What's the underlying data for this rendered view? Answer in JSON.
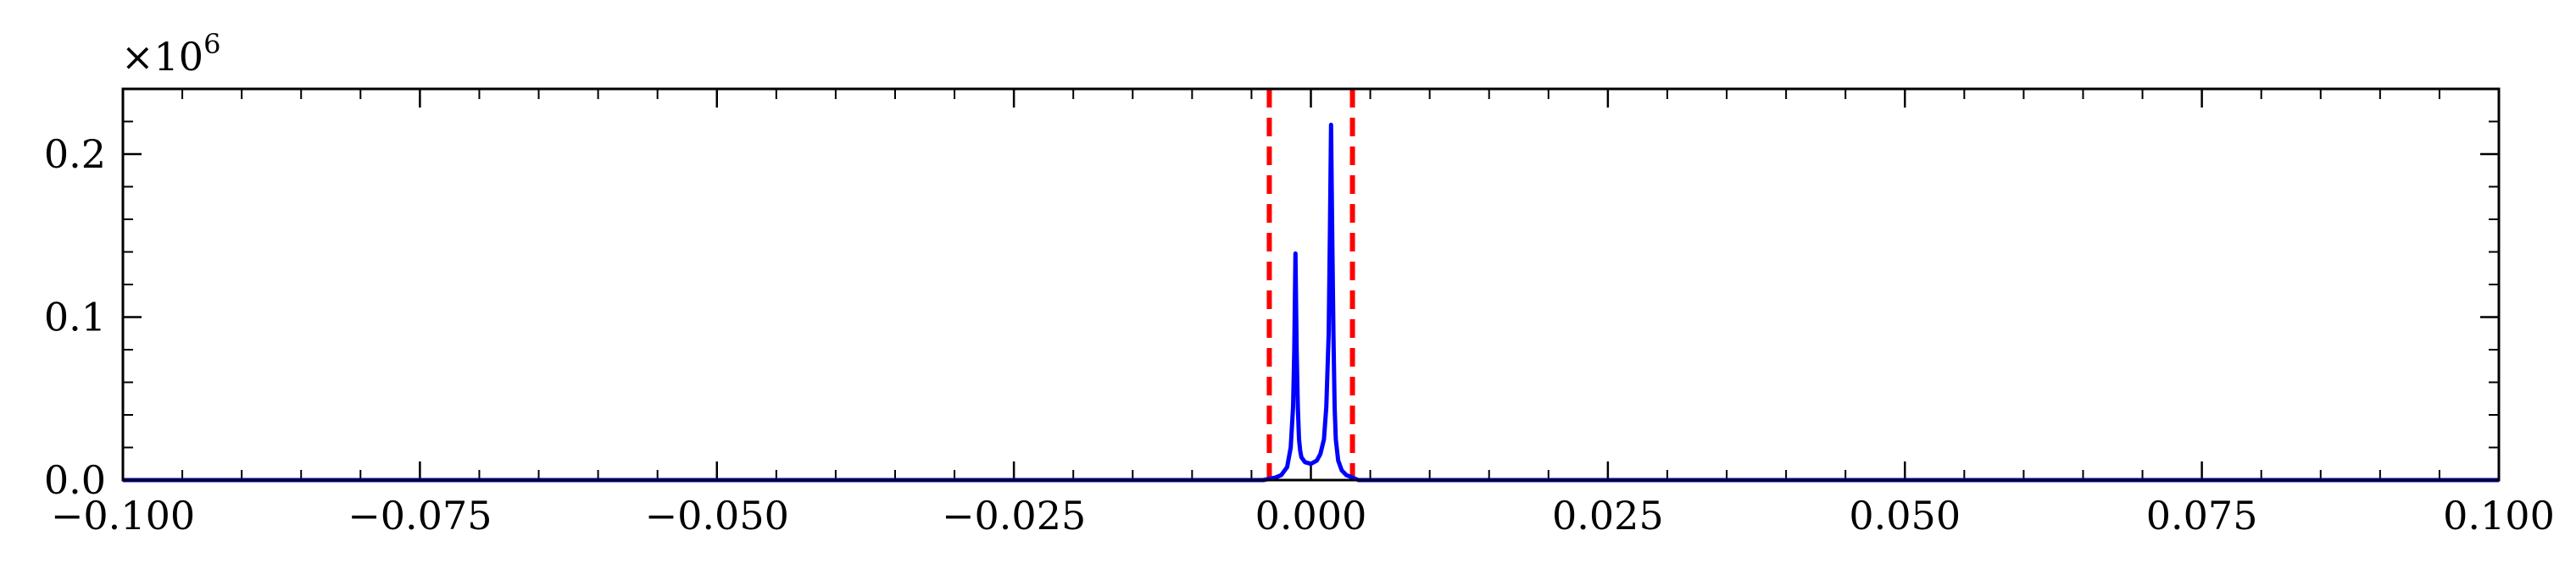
{
  "chart_data": {
    "type": "line",
    "title": "",
    "xlabel": "",
    "ylabel": "",
    "y_scale_label": "×10",
    "y_scale_exponent": "6",
    "xlim": [
      -0.1,
      0.1
    ],
    "ylim": [
      0,
      0.24
    ],
    "x_ticks": [
      -0.1,
      -0.075,
      -0.05,
      -0.025,
      0.0,
      0.025,
      0.05,
      0.075,
      0.1
    ],
    "x_tick_labels": [
      "−0.100",
      "−0.075",
      "−0.050",
      "−0.025",
      "0.000",
      "0.025",
      "0.050",
      "0.075",
      "0.100"
    ],
    "y_ticks": [
      0.0,
      0.1,
      0.2
    ],
    "y_tick_labels": [
      "0.0",
      "0.1",
      "0.2"
    ],
    "grid": false,
    "series": [
      {
        "color": "#0000ff",
        "x": [
          -0.1,
          -0.004,
          -0.0035,
          -0.003,
          -0.0025,
          -0.002,
          -0.0017,
          -0.0015,
          -0.0014,
          -0.0013,
          -0.0012,
          -0.0011,
          -0.001,
          -0.0009,
          -0.0008,
          -0.0005,
          0.0,
          0.0005,
          0.0008,
          0.0011,
          0.0013,
          0.0015,
          0.0016,
          0.0017,
          0.0018,
          0.0019,
          0.002,
          0.0021,
          0.0023,
          0.0026,
          0.003,
          0.0035,
          0.004,
          0.1
        ],
        "y": [
          0.0,
          0.0,
          0.0008,
          0.0015,
          0.003,
          0.008,
          0.02,
          0.045,
          0.08,
          0.139,
          0.08,
          0.045,
          0.025,
          0.018,
          0.014,
          0.011,
          0.01,
          0.012,
          0.016,
          0.025,
          0.045,
          0.09,
          0.15,
          0.218,
          0.15,
          0.09,
          0.045,
          0.025,
          0.012,
          0.006,
          0.003,
          0.0015,
          0.0,
          0.0
        ]
      }
    ],
    "vlines": [
      {
        "x": -0.0035,
        "color": "#ff0000",
        "style": "dashed"
      },
      {
        "x": 0.0035,
        "color": "#ff0000",
        "style": "dashed"
      }
    ]
  }
}
